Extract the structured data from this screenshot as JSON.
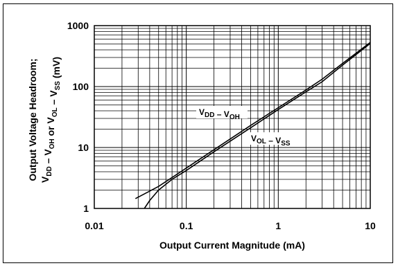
{
  "chart_data": {
    "type": "line",
    "x_scale": "log",
    "y_scale": "log",
    "xlim": [
      0.01,
      10
    ],
    "ylim": [
      1,
      1000
    ],
    "grid": true,
    "xlabel": "Output Current Magnitude (mA)",
    "ylabel": {
      "line1": "Output Voltage Headroom;",
      "line2_parts": [
        {
          "t": "V",
          "s": "DD"
        },
        {
          "t": " – V",
          "s": "OH"
        },
        {
          "t": " or V",
          "s": "OL"
        },
        {
          "t": " – V",
          "s": "SS"
        },
        {
          "t": " (mV)",
          "s": ""
        }
      ]
    },
    "x_ticks": [
      {
        "v": 0.01,
        "label": "0.01"
      },
      {
        "v": 0.1,
        "label": "0.1"
      },
      {
        "v": 1,
        "label": "1"
      },
      {
        "v": 10,
        "label": "10"
      }
    ],
    "y_ticks": [
      {
        "v": 1,
        "label": "1"
      },
      {
        "v": 10,
        "label": "10"
      },
      {
        "v": 100,
        "label": "100"
      },
      {
        "v": 1000,
        "label": "1000"
      }
    ],
    "series": [
      {
        "key": "vdd-voh",
        "label_parts": [
          {
            "t": "V",
            "s": "DD"
          },
          {
            "t": " – V",
            "s": "OH"
          }
        ],
        "x": [
          0.028,
          0.05,
          0.1,
          0.2,
          0.5,
          1,
          2,
          3,
          5,
          10
        ],
        "y": [
          1.45,
          2.3,
          4.6,
          9.2,
          23,
          45,
          88,
          132,
          240,
          530
        ]
      },
      {
        "key": "vol-vss",
        "label_parts": [
          {
            "t": "V",
            "s": "OL"
          },
          {
            "t": " – V",
            "s": "SS"
          }
        ],
        "x": [
          0.035,
          0.04,
          0.05,
          0.07,
          0.1,
          0.2,
          0.5,
          1,
          2,
          3,
          5,
          10
        ],
        "y": [
          1.0,
          1.35,
          2.0,
          3.0,
          4.2,
          8.5,
          21,
          42,
          82,
          120,
          225,
          510
        ]
      }
    ]
  }
}
